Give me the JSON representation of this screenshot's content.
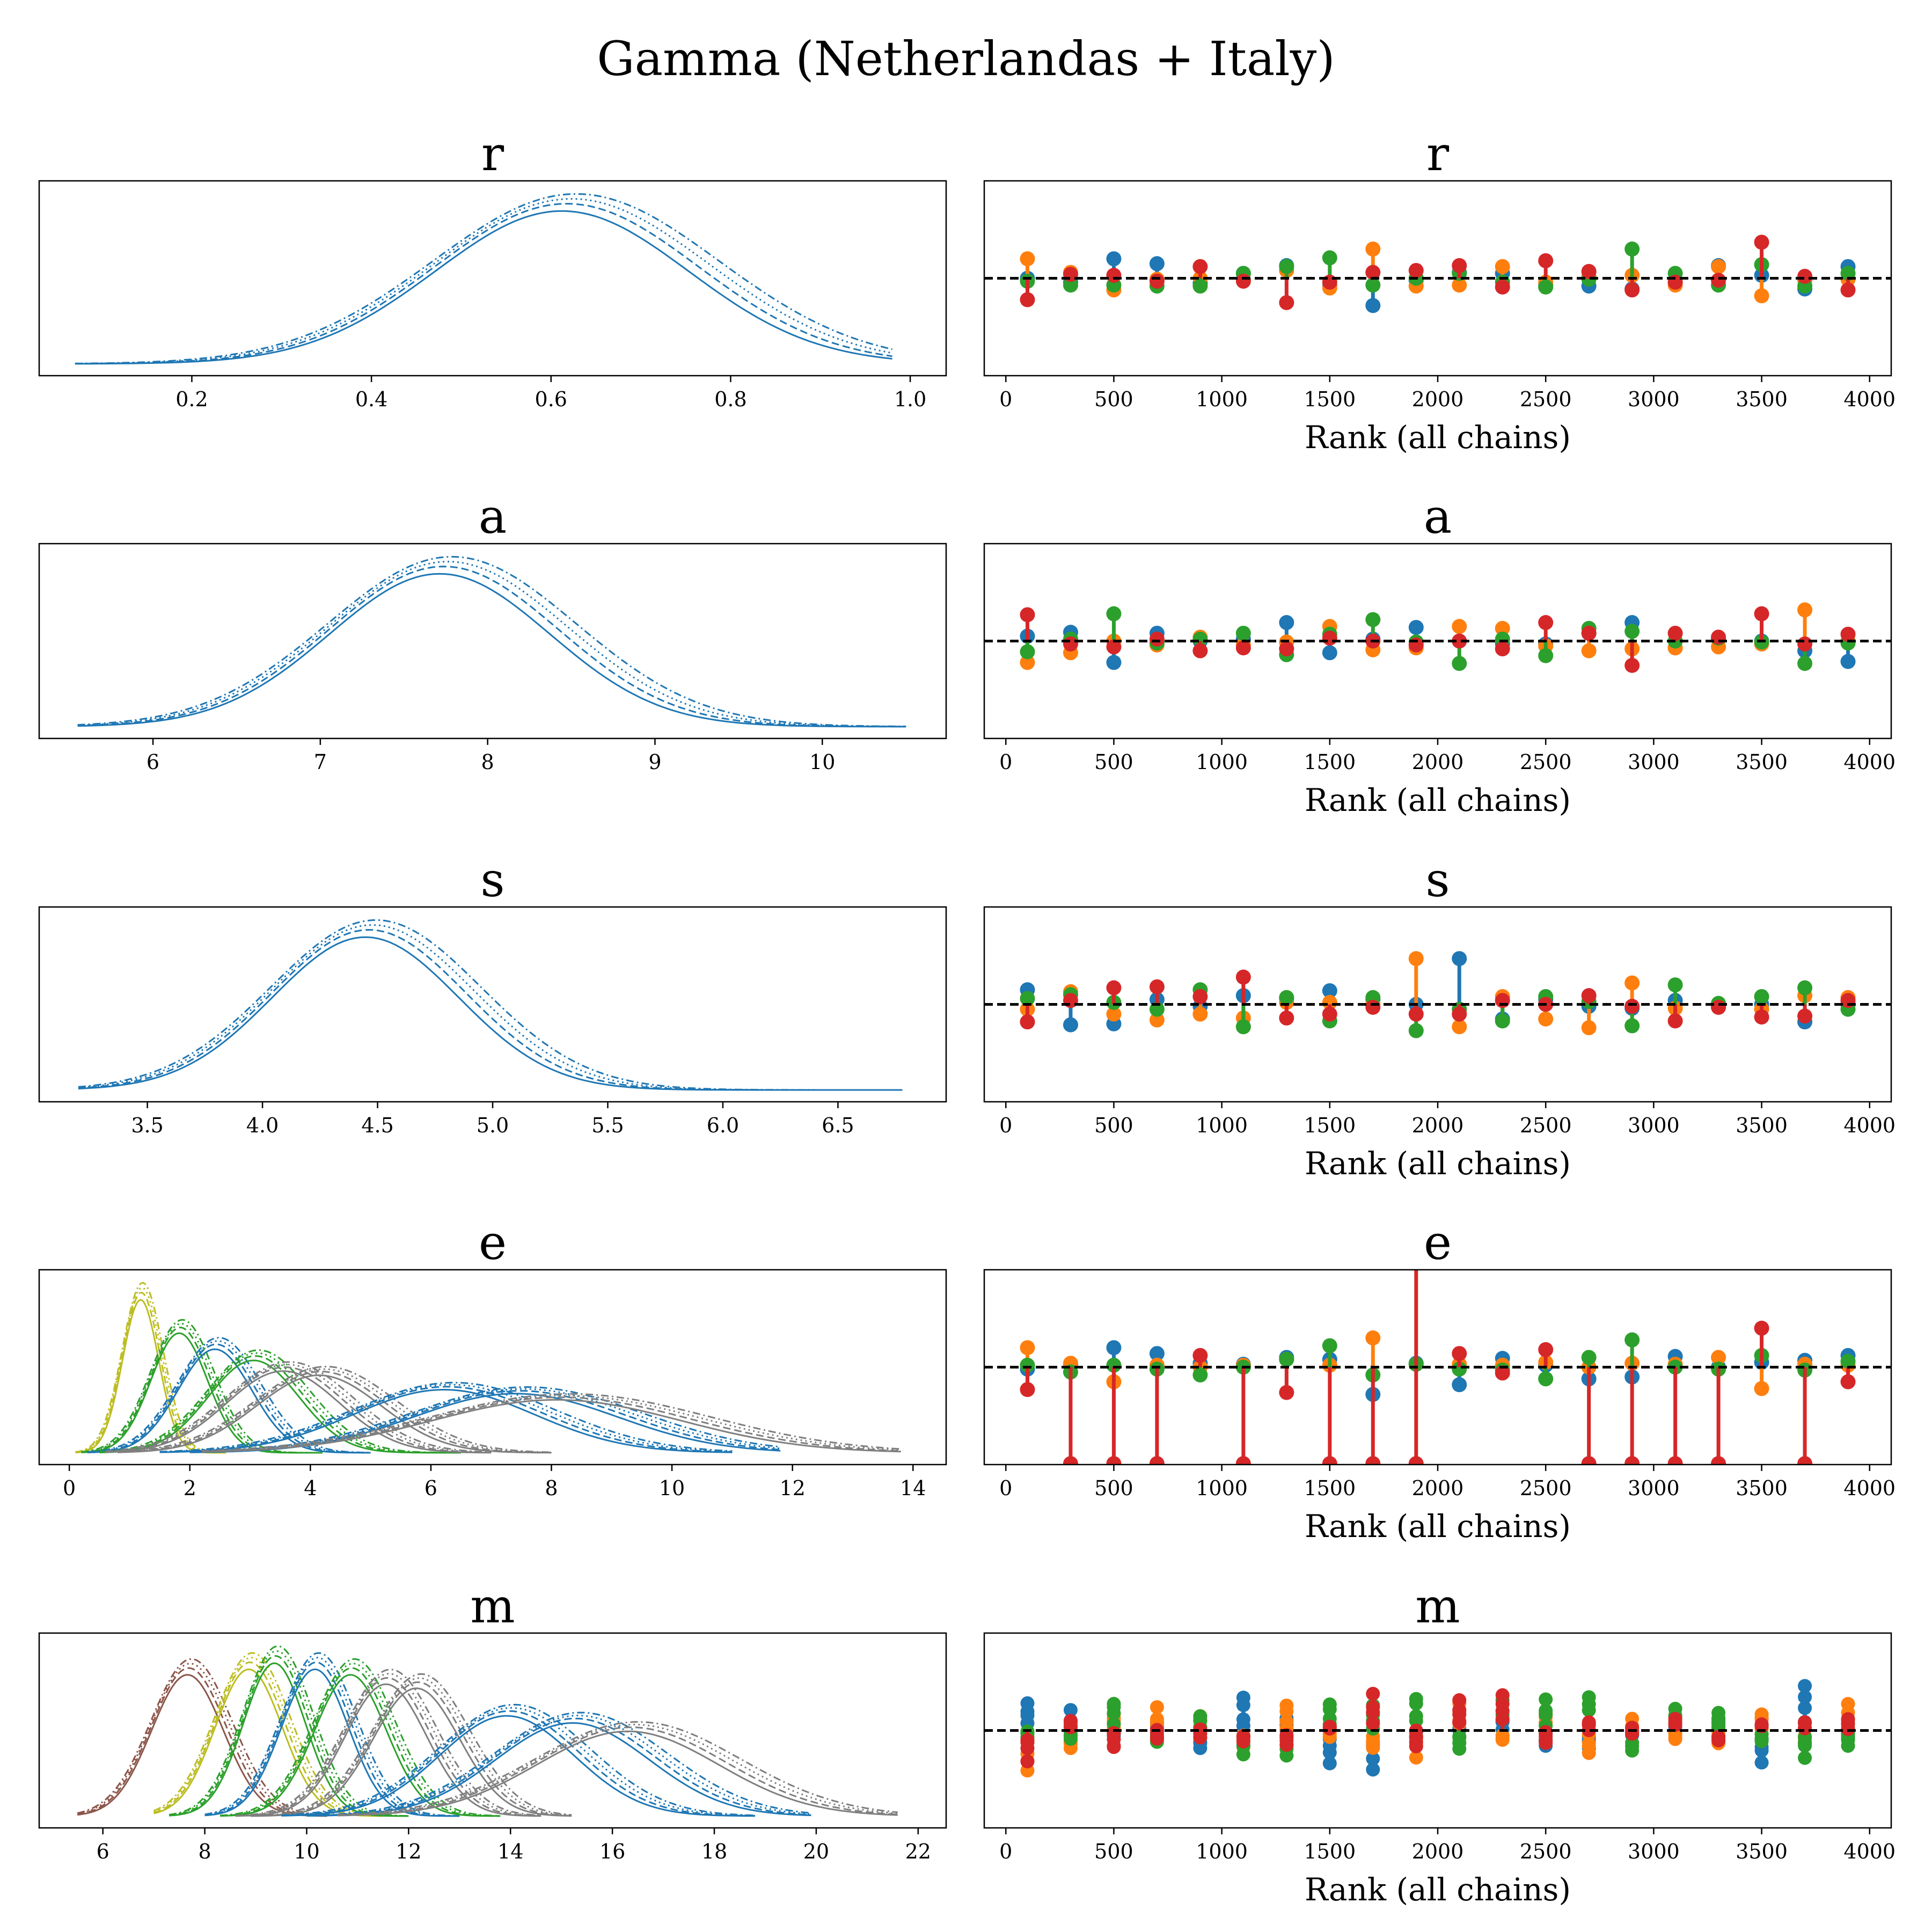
{
  "figure": {
    "suptitle": "Gamma (Netherlandas + Italy)"
  },
  "colors": {
    "blue": "#1f77b4",
    "orange": "#ff7f0e",
    "green": "#2ca02c",
    "red": "#d62728",
    "brown": "#8c564b",
    "gray": "#7f7f7f",
    "olive": "#bcbd22"
  },
  "chart_data": [
    {
      "type": "line",
      "panel": "density",
      "title": "r",
      "xlabel": "",
      "ylabel": "",
      "xlim": [
        0.03,
        1.04
      ],
      "xticks": [
        0.2,
        0.4,
        0.6,
        0.8,
        1.0
      ],
      "xtick_labels": [
        "0.2",
        "0.4",
        "0.6",
        "0.8",
        "1.0"
      ],
      "series": [
        {
          "components": [
            {
              "color": "blue",
              "mean": 0.62,
              "sd": 0.15,
              "xmin": 0.07,
              "xmax": 0.98
            }
          ]
        }
      ]
    },
    {
      "type": "scatter",
      "panel": "rank",
      "title": "r",
      "xlabel": "Rank (all chains)",
      "ylabel": "",
      "xlim": [
        -100,
        4100
      ],
      "xticks": [
        0,
        500,
        1000,
        1500,
        2000,
        2500,
        3000,
        3500,
        4000
      ],
      "xtick_labels": [
        "0",
        "500",
        "1000",
        "1500",
        "2000",
        "2500",
        "3000",
        "3500",
        "4000"
      ],
      "ylim": [
        0,
        2
      ],
      "reference_line": 1.0,
      "bins": 20,
      "chains": [
        {
          "color": "blue",
          "values": [
            1.0,
            0.96,
            1.2,
            1.15,
            0.95,
            1.05,
            1.13,
            0.92,
            0.72,
            0.98,
            1.06,
            1.05,
            0.93,
            0.92,
            0.89,
            0.96,
            1.13,
            1.03,
            0.89,
            1.12
          ]
        },
        {
          "color": "orange",
          "values": [
            1.2,
            1.06,
            0.88,
            0.99,
            1.0,
            0.98,
            1.08,
            0.9,
            1.3,
            0.92,
            0.93,
            1.12,
            0.96,
            1.02,
            1.03,
            0.93,
            1.12,
            0.82,
            0.98,
            0.99
          ]
        },
        {
          "color": "green",
          "values": [
            0.97,
            0.93,
            0.93,
            0.92,
            0.92,
            1.05,
            1.12,
            1.21,
            0.93,
            1.0,
            1.05,
            0.96,
            0.91,
            0.99,
            1.3,
            1.05,
            0.93,
            1.14,
            0.92,
            1.05
          ]
        },
        {
          "color": "red",
          "values": [
            0.78,
            1.04,
            1.03,
            0.97,
            1.12,
            0.97,
            0.75,
            0.96,
            1.06,
            1.08,
            1.13,
            0.91,
            1.18,
            1.07,
            0.88,
            0.96,
            0.98,
            1.37,
            1.02,
            0.88
          ]
        }
      ]
    },
    {
      "type": "line",
      "panel": "density",
      "title": "a",
      "xlabel": "",
      "ylabel": "",
      "xlim": [
        5.32,
        10.74
      ],
      "xticks": [
        6,
        7,
        8,
        9,
        10
      ],
      "xtick_labels": [
        "6",
        "7",
        "8",
        "9",
        "10"
      ],
      "series": [
        {
          "components": [
            {
              "color": "blue",
              "mean": 7.75,
              "sd": 0.7,
              "xmin": 5.55,
              "xmax": 10.5
            }
          ]
        }
      ]
    },
    {
      "type": "scatter",
      "panel": "rank",
      "title": "a",
      "xlabel": "Rank (all chains)",
      "ylabel": "",
      "xlim": [
        -100,
        4100
      ],
      "xticks": [
        0,
        500,
        1000,
        1500,
        2000,
        2500,
        3000,
        3500,
        4000
      ],
      "xtick_labels": [
        "0",
        "500",
        "1000",
        "1500",
        "2000",
        "2500",
        "3000",
        "3500",
        "4000"
      ],
      "ylim": [
        0,
        2
      ],
      "reference_line": 1.0,
      "bins": 20,
      "chains": [
        {
          "color": "blue",
          "values": [
            1.05,
            1.09,
            0.78,
            1.08,
            1.0,
            1.02,
            1.19,
            0.88,
            1.02,
            1.14,
            1.0,
            0.97,
            0.97,
            1.08,
            1.19,
            0.93,
            1.02,
            1.0,
            0.9,
            0.79
          ]
        },
        {
          "color": "orange",
          "values": [
            0.78,
            0.88,
            1.0,
            0.96,
            1.04,
            0.96,
            0.99,
            1.15,
            0.91,
            0.93,
            1.15,
            1.13,
            0.95,
            0.9,
            0.92,
            0.93,
            0.94,
            0.97,
            1.32,
            1.0
          ]
        },
        {
          "color": "green",
          "values": [
            0.89,
            1.02,
            1.28,
            0.98,
            1.02,
            1.08,
            0.86,
            1.07,
            1.22,
            0.99,
            0.77,
            1.02,
            0.85,
            1.13,
            1.1,
            1.0,
            1.03,
            0.99,
            0.77,
            0.98
          ]
        },
        {
          "color": "red",
          "values": [
            1.27,
            0.97,
            0.94,
            1.02,
            0.9,
            0.93,
            0.92,
            1.03,
            1.0,
            0.96,
            1.0,
            0.92,
            1.19,
            1.08,
            0.75,
            1.08,
            1.04,
            1.28,
            0.97,
            1.07
          ]
        }
      ]
    },
    {
      "type": "line",
      "panel": "density",
      "title": "s",
      "xlabel": "",
      "ylabel": "",
      "xlim": [
        3.03,
        6.97
      ],
      "xticks": [
        3.5,
        4.0,
        4.5,
        5.0,
        5.5,
        6.0,
        6.5
      ],
      "xtick_labels": [
        "3.5",
        "4.0",
        "4.5",
        "5.0",
        "5.5",
        "6.0",
        "6.5"
      ],
      "series": [
        {
          "components": [
            {
              "color": "blue",
              "mean": 4.47,
              "sd": 0.43,
              "xmin": 3.2,
              "xmax": 6.78
            }
          ]
        }
      ]
    },
    {
      "type": "scatter",
      "panel": "rank",
      "title": "s",
      "xlabel": "Rank (all chains)",
      "ylabel": "",
      "xlim": [
        -100,
        4100
      ],
      "xticks": [
        0,
        500,
        1000,
        1500,
        2000,
        2500,
        3000,
        3500,
        4000
      ],
      "xtick_labels": [
        "0",
        "500",
        "1000",
        "1500",
        "2000",
        "2500",
        "3000",
        "3500",
        "4000"
      ],
      "ylim": [
        0,
        2
      ],
      "reference_line": 1.0,
      "bins": 20,
      "chains": [
        {
          "color": "blue",
          "values": [
            1.15,
            0.79,
            0.8,
            1.05,
            0.98,
            1.09,
            1.06,
            1.14,
            1.05,
            1.0,
            1.47,
            0.85,
            1.05,
            0.98,
            0.96,
            1.04,
            0.99,
            1.0,
            0.82,
            1.0
          ]
        },
        {
          "color": "orange",
          "values": [
            0.95,
            1.13,
            0.9,
            0.84,
            0.9,
            0.86,
            1.02,
            1.02,
            1.0,
            1.47,
            0.77,
            1.08,
            0.85,
            0.76,
            1.22,
            0.96,
            0.97,
            0.95,
            1.09,
            1.07
          ]
        },
        {
          "color": "green",
          "values": [
            1.06,
            1.1,
            1.02,
            0.95,
            1.15,
            0.77,
            1.07,
            0.83,
            1.07,
            0.73,
            0.95,
            0.83,
            1.08,
            1.03,
            0.78,
            1.2,
            1.01,
            1.08,
            1.17,
            0.95
          ]
        },
        {
          "color": "red",
          "values": [
            0.82,
            1.04,
            1.17,
            1.18,
            1.08,
            1.28,
            0.86,
            0.9,
            0.97,
            0.9,
            0.9,
            1.04,
            1.0,
            1.09,
            0.98,
            0.83,
            0.97,
            0.87,
            0.88,
            1.04
          ]
        }
      ]
    },
    {
      "type": "line",
      "panel": "density",
      "title": "e",
      "xlabel": "",
      "ylabel": "",
      "xlim": [
        -0.5,
        14.55
      ],
      "xticks": [
        0,
        2,
        4,
        6,
        8,
        10,
        12,
        14
      ],
      "xtick_labels": [
        "0",
        "2",
        "4",
        "6",
        "8",
        "10",
        "12",
        "14"
      ],
      "series": [
        {
          "components": [
            {
              "color": "olive",
              "mean": 1.2,
              "sd": 0.32,
              "xmin": 0.1,
              "xmax": 2.6
            },
            {
              "color": "green",
              "mean": 1.85,
              "sd": 0.5,
              "xmin": 0.2,
              "xmax": 4.2
            },
            {
              "color": "blue",
              "mean": 2.45,
              "sd": 0.65,
              "xmin": 0.3,
              "xmax": 5.0
            },
            {
              "color": "green",
              "mean": 3.1,
              "sd": 0.8,
              "xmin": 0.5,
              "xmax": 6.5
            },
            {
              "color": "gray",
              "mean": 3.6,
              "sd": 1.0,
              "xmin": 0.6,
              "xmax": 7.0
            },
            {
              "color": "gray",
              "mean": 4.2,
              "sd": 1.1,
              "xmin": 0.8,
              "xmax": 8.0
            },
            {
              "color": "blue",
              "mean": 6.3,
              "sd": 1.6,
              "xmin": 1.5,
              "xmax": 11.0
            },
            {
              "color": "blue",
              "mean": 7.5,
              "sd": 1.8,
              "xmin": 2.0,
              "xmax": 11.8
            },
            {
              "color": "gray",
              "mean": 8.2,
              "sd": 2.2,
              "xmin": 2.2,
              "xmax": 13.8
            }
          ]
        }
      ]
    },
    {
      "type": "scatter",
      "panel": "rank",
      "title": "e",
      "xlabel": "Rank (all chains)",
      "ylabel": "",
      "xlim": [
        -100,
        4100
      ],
      "xticks": [
        0,
        500,
        1000,
        1500,
        2000,
        2500,
        3000,
        3500,
        4000
      ],
      "xtick_labels": [
        "0",
        "500",
        "1000",
        "1500",
        "2000",
        "2500",
        "3000",
        "3500",
        "4000"
      ],
      "ylim": [
        0,
        2
      ],
      "reference_line": 1.0,
      "bins": 20,
      "chains": [
        {
          "color": "blue",
          "values": [
            0.98,
            1.03,
            1.2,
            1.14,
            1.04,
            1.03,
            1.1,
            1.08,
            0.72,
            1.04,
            0.82,
            1.09,
            1.02,
            0.88,
            0.9,
            1.11,
            1.0,
            1.05,
            1.07,
            1.12
          ]
        },
        {
          "color": "orange",
          "values": [
            1.2,
            1.04,
            0.85,
            1.02,
            1.0,
            1.02,
            1.08,
            1.02,
            1.3,
            1.03,
            1.03,
            1.02,
            1.05,
            1.0,
            1.04,
            1.03,
            1.1,
            0.78,
            1.03,
            1.02
          ]
        },
        {
          "color": "green",
          "values": [
            1.02,
            0.95,
            1.02,
            0.98,
            0.92,
            1.0,
            1.08,
            1.22,
            0.92,
            1.03,
            0.98,
            0.97,
            0.88,
            1.1,
            1.28,
            1.0,
            0.98,
            1.12,
            0.97,
            1.06
          ]
        },
        {
          "color": "red",
          "values": [
            0.77,
            0.01,
            0.01,
            0.01,
            1.12,
            0.01,
            0.74,
            0.01,
            0.01,
            0.01,
            1.14,
            0.94,
            1.18,
            0.01,
            0.01,
            0.01,
            0.01,
            1.4,
            0.01,
            0.85
          ],
          "spikes": [
            {
              "bin": 9,
              "value": 2.0
            }
          ]
        }
      ]
    },
    {
      "type": "line",
      "panel": "density",
      "title": "m",
      "xlabel": "",
      "ylabel": "",
      "xlim": [
        4.75,
        22.55
      ],
      "xticks": [
        6,
        8,
        10,
        12,
        14,
        16,
        18,
        20,
        22
      ],
      "xtick_labels": [
        "6",
        "8",
        "10",
        "12",
        "14",
        "16",
        "18",
        "20",
        "22"
      ],
      "series": [
        {
          "components": [
            {
              "color": "brown",
              "mean": 7.7,
              "sd": 0.75,
              "xmin": 5.5,
              "xmax": 10.4
            },
            {
              "color": "olive",
              "mean": 8.9,
              "sd": 0.7,
              "xmin": 7.0,
              "xmax": 11.5
            },
            {
              "color": "green",
              "mean": 9.4,
              "sd": 0.65,
              "xmin": 7.3,
              "xmax": 12.0
            },
            {
              "color": "blue",
              "mean": 10.2,
              "sd": 0.7,
              "xmin": 8.0,
              "xmax": 13.0
            },
            {
              "color": "green",
              "mean": 10.9,
              "sd": 0.75,
              "xmin": 8.3,
              "xmax": 13.8
            },
            {
              "color": "gray",
              "mean": 11.6,
              "sd": 0.85,
              "xmin": 8.6,
              "xmax": 14.6
            },
            {
              "color": "gray",
              "mean": 12.2,
              "sd": 0.9,
              "xmin": 8.9,
              "xmax": 15.2
            },
            {
              "color": "blue",
              "mean": 14.0,
              "sd": 1.4,
              "xmin": 9.5,
              "xmax": 18.8
            },
            {
              "color": "blue",
              "mean": 15.3,
              "sd": 1.6,
              "xmin": 10.0,
              "xmax": 19.9
            },
            {
              "color": "gray",
              "mean": 16.4,
              "sd": 1.9,
              "xmin": 10.6,
              "xmax": 21.6
            }
          ]
        }
      ]
    },
    {
      "type": "scatter",
      "panel": "rank",
      "title": "m",
      "xlabel": "Rank (all chains)",
      "ylabel": "",
      "xlim": [
        -100,
        4100
      ],
      "xticks": [
        0,
        500,
        1000,
        1500,
        2000,
        2500,
        3000,
        3500,
        4000
      ],
      "xtick_labels": [
        "0",
        "500",
        "1000",
        "1500",
        "2000",
        "2500",
        "3000",
        "3500",
        "4000"
      ],
      "ylim": [
        0,
        2
      ],
      "reference_line": 1.0,
      "bins": 20,
      "multi_point": true,
      "chains": [
        {
          "color": "blue",
          "values": [
            1.3,
            1.18,
            0.95,
            1.1,
            0.82,
            1.3,
            1.12,
            0.68,
            0.62,
            0.9,
            1.06,
            1.12,
            0.83,
            0.85,
            0.95,
            1.0,
            1.12,
            0.7,
            1.42,
            0.93
          ]
        },
        {
          "color": "orange",
          "values": [
            0.6,
            0.8,
            1.18,
            1.2,
            1.15,
            0.85,
            1.24,
            0.94,
            0.86,
            0.75,
            1.28,
            0.92,
            1.22,
            0.8,
            1.1,
            0.9,
            0.88,
            1.2,
            0.86,
            1.24
          ]
        },
        {
          "color": "green",
          "values": [
            0.95,
            0.9,
            1.28,
            0.85,
            1.12,
            0.75,
            0.72,
            1.25,
            1.22,
            1.35,
            0.85,
            1.32,
            1.3,
            1.35,
            0.8,
            1.25,
            1.18,
            0.9,
            0.75,
            0.88
          ]
        },
        {
          "color": "red",
          "values": [
            0.72,
            1.12,
            0.82,
            0.9,
            0.95,
            0.85,
            0.88,
            1.02,
            1.36,
            0.85,
            1.32,
            1.36,
            0.9,
            1.05,
            1.0,
            1.14,
            0.88,
            1.08,
            1.1,
            1.14
          ]
        }
      ]
    }
  ]
}
